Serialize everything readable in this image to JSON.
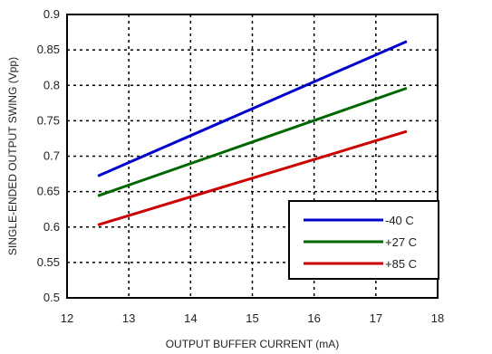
{
  "chart_data": {
    "type": "line",
    "title": "",
    "xlabel": "OUTPUT BUFFER CURRENT (mA)",
    "ylabel": "SINGLE-ENDED OUTPUT SWING (Vpp)",
    "xlim": [
      12,
      18
    ],
    "ylim": [
      0.5,
      0.9
    ],
    "xticks": [
      12,
      13,
      14,
      15,
      16,
      17,
      18
    ],
    "yticks": [
      0.5,
      0.55,
      0.6,
      0.65,
      0.7,
      0.75,
      0.8,
      0.85,
      0.9
    ],
    "xtick_labels": [
      "12",
      "13",
      "14",
      "15",
      "16",
      "17",
      "18"
    ],
    "ytick_labels": [
      "0.5",
      "0.55",
      "0.6",
      "0.65",
      "0.7",
      "0.75",
      "0.8",
      "0.85",
      "0.9"
    ],
    "grid": true,
    "grid_style": "dotted",
    "legend_position": "bottom-right",
    "series": [
      {
        "name": "-40 C",
        "color": "#0000cc",
        "x": [
          12.5,
          17.5
        ],
        "y": [
          0.672,
          0.862
        ]
      },
      {
        "name": "+27 C",
        "color": "#006600",
        "x": [
          12.5,
          17.5
        ],
        "y": [
          0.644,
          0.796
        ]
      },
      {
        "name": "+85 C",
        "color": "#cc0000",
        "x": [
          12.5,
          17.5
        ],
        "y": [
          0.603,
          0.735
        ]
      }
    ]
  }
}
